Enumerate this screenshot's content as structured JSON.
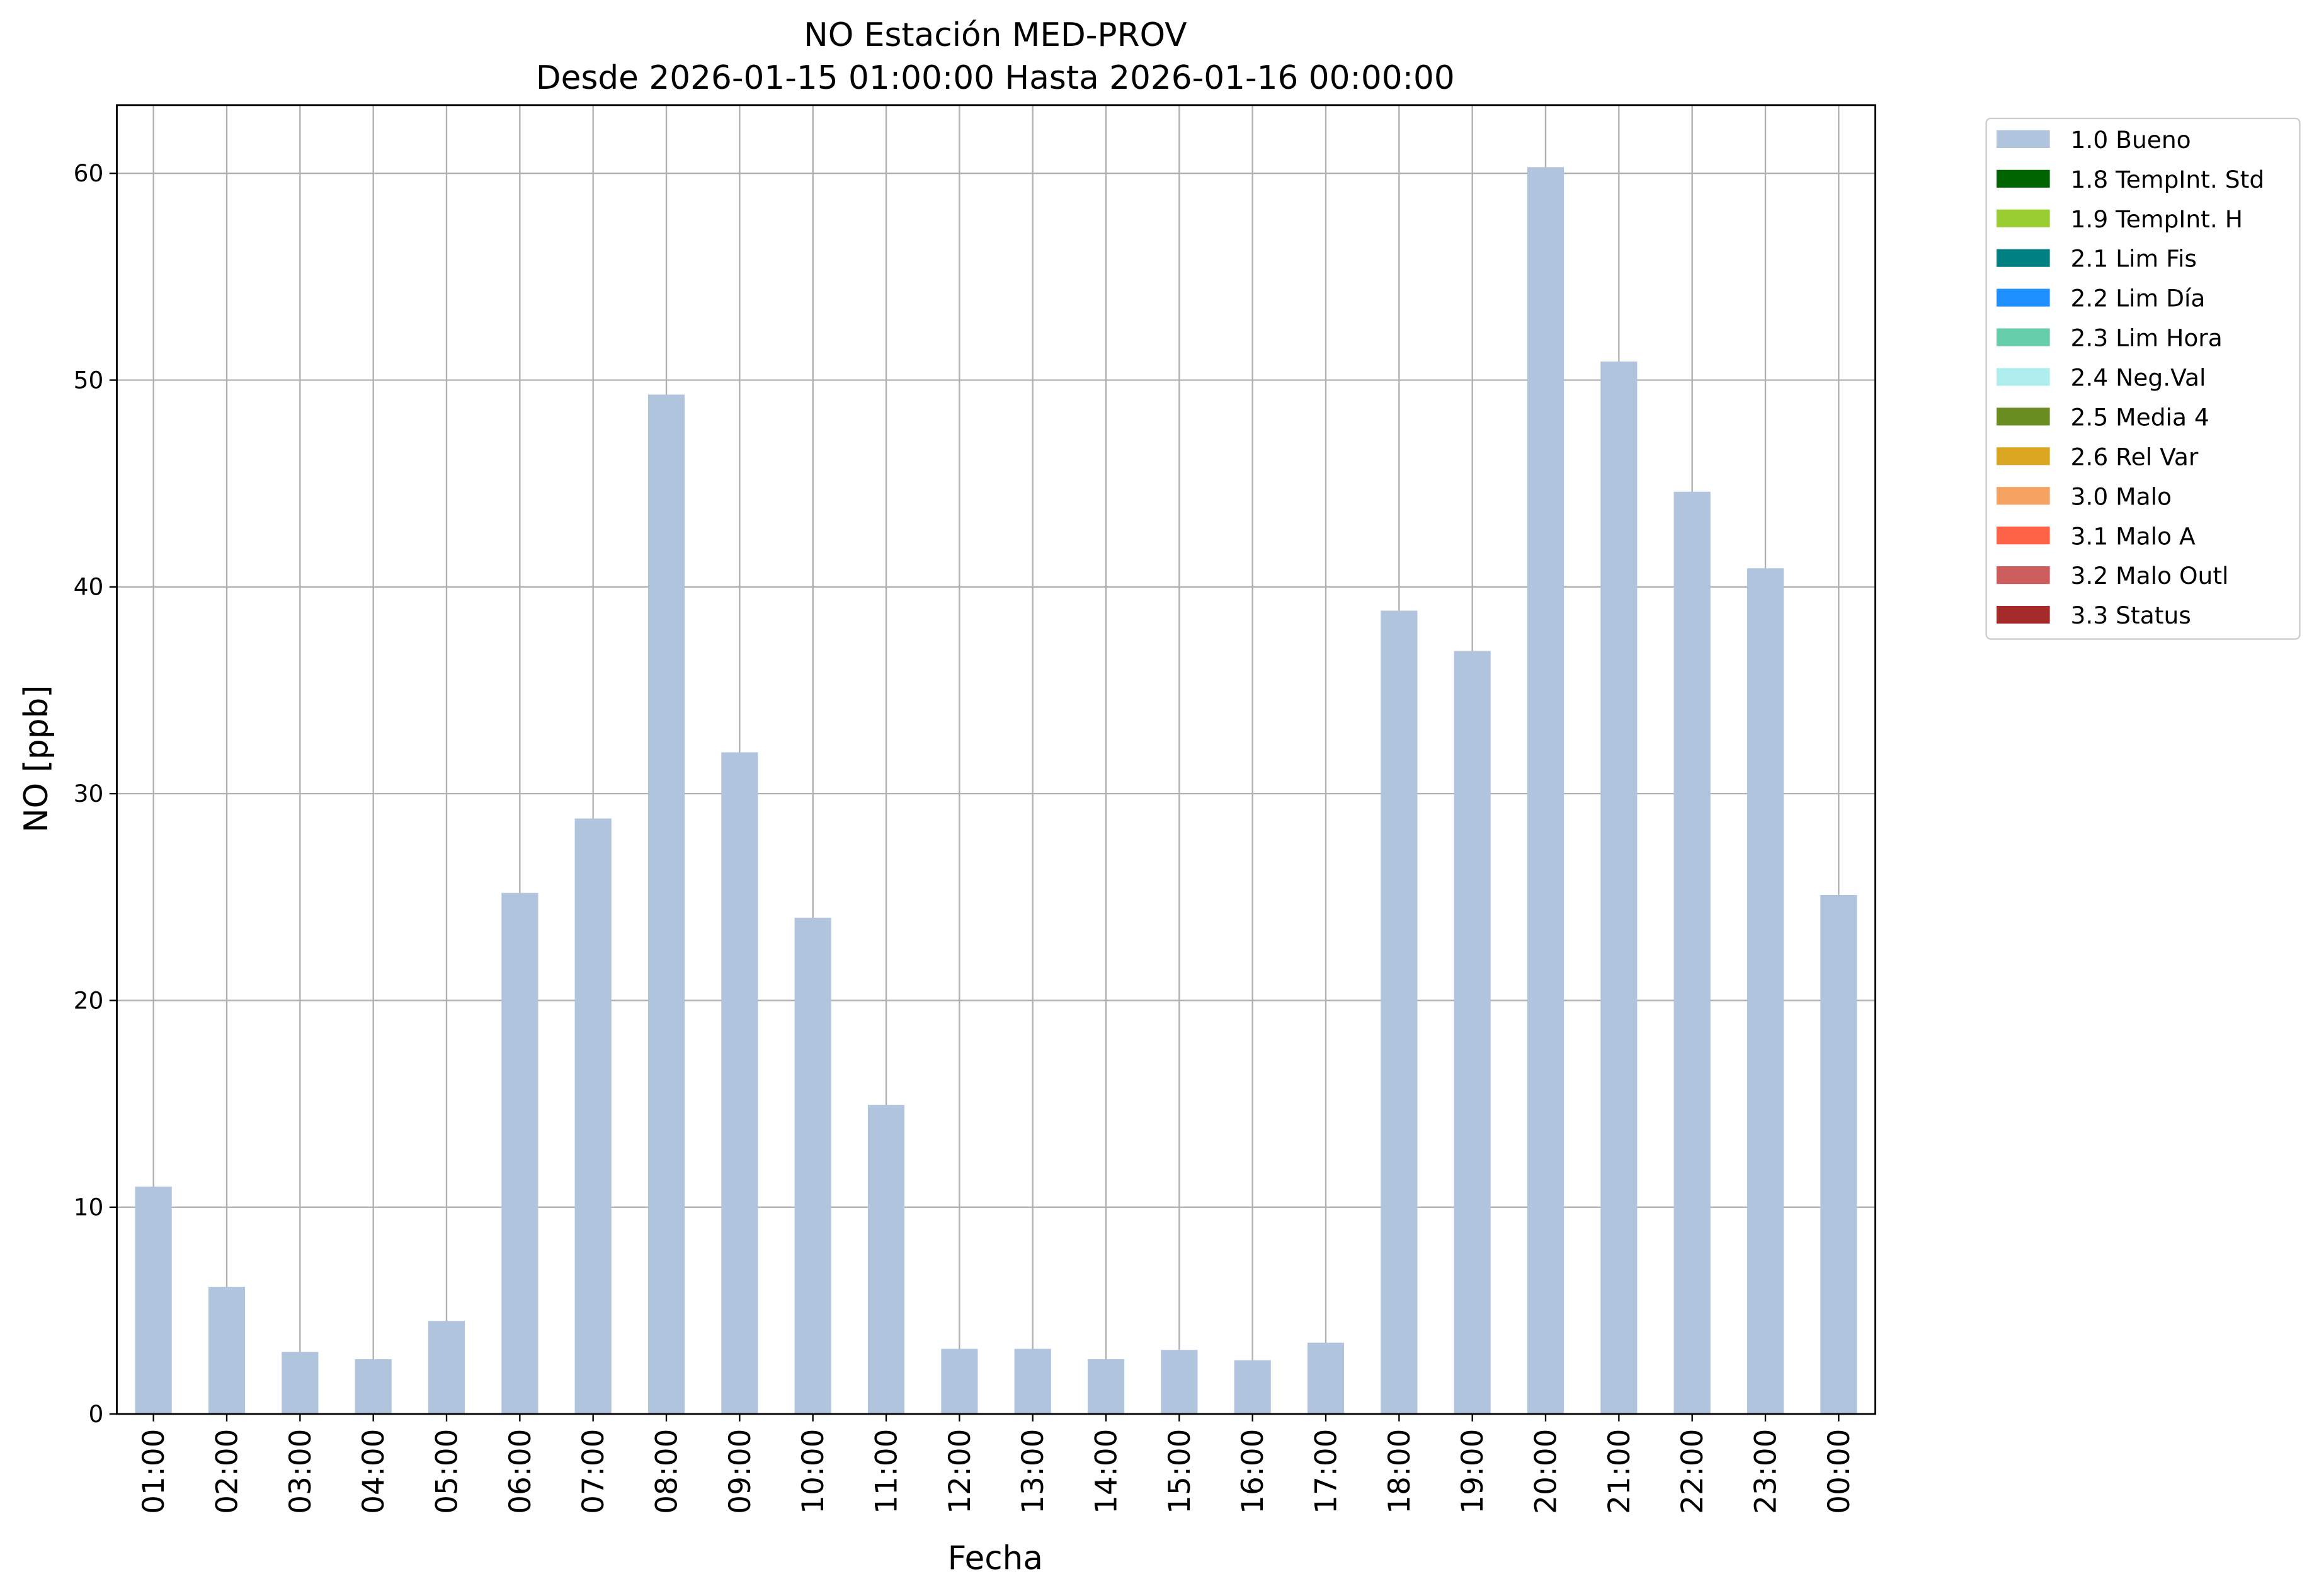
{
  "chart_data": {
    "type": "bar",
    "stacked": true,
    "title": "NO Estación MED-PROV",
    "subtitle": "Desde 2026-01-15 01:00:00 Hasta 2026-01-16 00:00:00",
    "x_label": "Fecha",
    "y_label": "NO [ppb]",
    "categories": [
      "01:00",
      "02:00",
      "03:00",
      "04:00",
      "05:00",
      "06:00",
      "07:00",
      "08:00",
      "09:00",
      "10:00",
      "11:00",
      "12:00",
      "13:00",
      "14:00",
      "15:00",
      "16:00",
      "17:00",
      "18:00",
      "19:00",
      "20:00",
      "21:00",
      "22:00",
      "23:00",
      "00:00"
    ],
    "series": [
      {
        "name": "1.0 Bueno",
        "color": "#b0c4de",
        "values": [
          11.0,
          6.15,
          3.0,
          2.65,
          4.5,
          25.2,
          28.8,
          49.3,
          32.0,
          24.0,
          14.95,
          3.15,
          3.15,
          2.65,
          3.1,
          2.6,
          3.45,
          38.85,
          36.9,
          60.3,
          50.9,
          44.6,
          40.9,
          25.1
        ]
      },
      {
        "name": "1.8 TempInt. Std",
        "color": "#006400",
        "values": [
          null,
          null,
          null,
          null,
          null,
          null,
          null,
          null,
          null,
          null,
          null,
          null,
          null,
          null,
          null,
          null,
          null,
          null,
          null,
          null,
          null,
          null,
          null,
          null
        ]
      },
      {
        "name": "1.9 TempInt. H",
        "color": "#9acd32",
        "values": [
          null,
          null,
          null,
          null,
          null,
          null,
          null,
          null,
          null,
          null,
          null,
          null,
          null,
          null,
          null,
          null,
          null,
          null,
          null,
          null,
          null,
          null,
          null,
          null
        ]
      },
      {
        "name": "2.1 Lim Fis",
        "color": "#008080",
        "values": [
          null,
          null,
          null,
          null,
          null,
          null,
          null,
          null,
          null,
          null,
          null,
          null,
          null,
          null,
          null,
          null,
          null,
          null,
          null,
          null,
          null,
          null,
          null,
          null
        ]
      },
      {
        "name": "2.2 Lim Día",
        "color": "#1e90ff",
        "values": [
          null,
          null,
          null,
          null,
          null,
          null,
          null,
          null,
          null,
          null,
          null,
          null,
          null,
          null,
          null,
          null,
          null,
          null,
          null,
          null,
          null,
          null,
          null,
          null
        ]
      },
      {
        "name": "2.3 Lim Hora",
        "color": "#66cdaa",
        "values": [
          null,
          null,
          null,
          null,
          null,
          null,
          null,
          null,
          null,
          null,
          null,
          null,
          null,
          null,
          null,
          null,
          null,
          null,
          null,
          null,
          null,
          null,
          null,
          null
        ]
      },
      {
        "name": "2.4 Neg.Val",
        "color": "#afeeee",
        "values": [
          null,
          null,
          null,
          null,
          null,
          null,
          null,
          null,
          null,
          null,
          null,
          null,
          null,
          null,
          null,
          null,
          null,
          null,
          null,
          null,
          null,
          null,
          null,
          null
        ]
      },
      {
        "name": "2.5 Media 4",
        "color": "#6b8e23",
        "values": [
          null,
          null,
          null,
          null,
          null,
          null,
          null,
          null,
          null,
          null,
          null,
          null,
          null,
          null,
          null,
          null,
          null,
          null,
          null,
          null,
          null,
          null,
          null,
          null
        ]
      },
      {
        "name": "2.6 Rel Var",
        "color": "#daa520",
        "values": [
          null,
          null,
          null,
          null,
          null,
          null,
          null,
          null,
          null,
          null,
          null,
          null,
          null,
          null,
          null,
          null,
          null,
          null,
          null,
          null,
          null,
          null,
          null,
          null
        ]
      },
      {
        "name": "3.0 Malo",
        "color": "#f4a460",
        "values": [
          null,
          null,
          null,
          null,
          null,
          null,
          null,
          null,
          null,
          null,
          null,
          null,
          null,
          null,
          null,
          null,
          null,
          null,
          null,
          null,
          null,
          null,
          null,
          null
        ]
      },
      {
        "name": "3.1 Malo A",
        "color": "#ff6347",
        "values": [
          null,
          null,
          null,
          null,
          null,
          null,
          null,
          null,
          null,
          null,
          null,
          null,
          null,
          null,
          null,
          null,
          null,
          null,
          null,
          null,
          null,
          null,
          null,
          null
        ]
      },
      {
        "name": "3.2 Malo Outl",
        "color": "#cd5c5c",
        "values": [
          null,
          null,
          null,
          null,
          null,
          null,
          null,
          null,
          null,
          null,
          null,
          null,
          null,
          null,
          null,
          null,
          null,
          null,
          null,
          null,
          null,
          null,
          null,
          null
        ]
      },
      {
        "name": "3.3 Status",
        "color": "#a52a2a",
        "values": [
          null,
          null,
          null,
          null,
          null,
          null,
          null,
          null,
          null,
          null,
          null,
          null,
          null,
          null,
          null,
          null,
          null,
          null,
          null,
          null,
          null,
          null,
          null,
          null
        ]
      }
    ],
    "ylim": [
      0,
      63.3
    ],
    "yticks": [
      0,
      10,
      20,
      30,
      40,
      50,
      60
    ],
    "grid": true,
    "legend": "outside-upper-right"
  }
}
